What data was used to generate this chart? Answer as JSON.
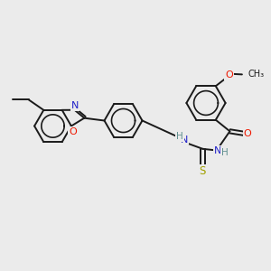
{
  "bg_color": "#ebebeb",
  "bond_color": "#1a1a1a",
  "bond_width": 1.4,
  "atom_colors": {
    "N": "#2020c8",
    "O": "#ee1800",
    "S": "#a0a000",
    "H": "#609090",
    "C": "#1a1a1a"
  },
  "figsize": [
    3.0,
    3.0
  ],
  "dpi": 100
}
